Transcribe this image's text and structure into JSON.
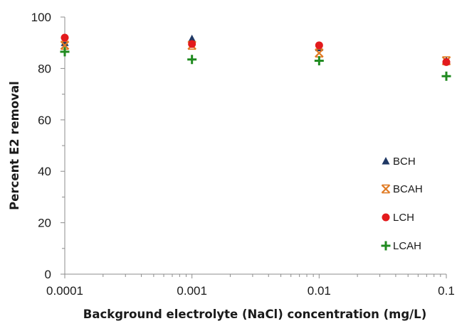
{
  "chart_data": {
    "type": "scatter",
    "title": "",
    "xlabel": "Background electrolyte (NaCl) concentration (mg/L)",
    "ylabel": "Percent E2 removal",
    "xscale": "log",
    "xlim": [
      0.0001,
      0.1
    ],
    "ylim": [
      0,
      100
    ],
    "x_ticks": [
      0.0001,
      0.001,
      0.01,
      0.1
    ],
    "x_tick_labels": [
      "0.0001",
      "0.001",
      "0.01",
      "0.1"
    ],
    "y_ticks": [
      0,
      20,
      40,
      60,
      80,
      100
    ],
    "y_tick_labels": [
      "0",
      "20",
      "40",
      "60",
      "80",
      "100"
    ],
    "grid": false,
    "legend_position": "right",
    "series": [
      {
        "name": "BCH",
        "marker": "triangle",
        "color": "#1f3864",
        "x": [
          0.0001,
          0.001,
          0.01,
          0.1
        ],
        "y": [
          90,
          91.5,
          88,
          83
        ]
      },
      {
        "name": "BCAH",
        "marker": "asterisk-x",
        "color": "#e07b24",
        "x": [
          0.0001,
          0.001,
          0.01,
          0.1
        ],
        "y": [
          89,
          89,
          86,
          83
        ]
      },
      {
        "name": "LCH",
        "marker": "circle",
        "color": "#e31a1c",
        "x": [
          0.0001,
          0.001,
          0.01,
          0.1
        ],
        "y": [
          92,
          89.5,
          89,
          82.5
        ]
      },
      {
        "name": "LCAH",
        "marker": "plus",
        "color": "#1f8a1f",
        "x": [
          0.0001,
          0.001,
          0.01,
          0.1
        ],
        "y": [
          86.5,
          83.5,
          83,
          77
        ]
      }
    ]
  }
}
